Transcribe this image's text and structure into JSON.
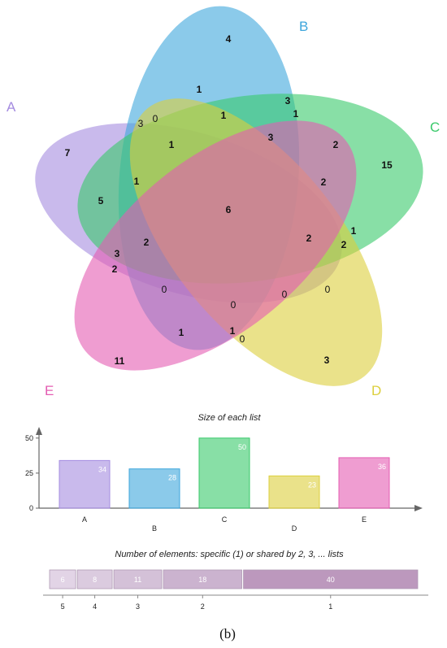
{
  "chart_data": [
    {
      "type": "venn",
      "sets": [
        {
          "name": "A",
          "color": "#a58ce0"
        },
        {
          "name": "B",
          "color": "#3ea6dc"
        },
        {
          "name": "C",
          "color": "#39c96a"
        },
        {
          "name": "D",
          "color": "#dccf3c"
        },
        {
          "name": "E",
          "color": "#e45cb2"
        }
      ],
      "regions": [
        {
          "value": "4",
          "bold": true
        },
        {
          "value": "1",
          "bold": true
        },
        {
          "value": "3",
          "bold": true
        },
        {
          "value": "1",
          "bold": true
        },
        {
          "value": "3",
          "bold": false
        },
        {
          "value": "0",
          "bold": false
        },
        {
          "value": "1",
          "bold": true
        },
        {
          "value": "3",
          "bold": true
        },
        {
          "value": "1",
          "bold": true
        },
        {
          "value": "2",
          "bold": true
        },
        {
          "value": "7",
          "bold": true
        },
        {
          "value": "15",
          "bold": true
        },
        {
          "value": "1",
          "bold": true
        },
        {
          "value": "2",
          "bold": true
        },
        {
          "value": "5",
          "bold": true
        },
        {
          "value": "6",
          "bold": true
        },
        {
          "value": "1",
          "bold": true
        },
        {
          "value": "2",
          "bold": true
        },
        {
          "value": "2",
          "bold": true
        },
        {
          "value": "2",
          "bold": true
        },
        {
          "value": "3",
          "bold": true
        },
        {
          "value": "2",
          "bold": true
        },
        {
          "value": "0",
          "bold": false
        },
        {
          "value": "0",
          "bold": false
        },
        {
          "value": "0",
          "bold": false
        },
        {
          "value": "0",
          "bold": false
        },
        {
          "value": "1",
          "bold": true
        },
        {
          "value": "1",
          "bold": true
        },
        {
          "value": "0",
          "bold": false
        },
        {
          "value": "11",
          "bold": true
        },
        {
          "value": "3",
          "bold": true
        }
      ]
    },
    {
      "type": "bar",
      "title": "Size of each list",
      "categories": [
        "A",
        "B",
        "C",
        "D",
        "E"
      ],
      "values": [
        34,
        28,
        50,
        23,
        36
      ],
      "y_ticks": [
        0,
        25,
        50
      ],
      "ylim": [
        0,
        58
      ],
      "colors": [
        "#a58ce0",
        "#3ea6dc",
        "#39c96a",
        "#dccf3c",
        "#e45cb2"
      ]
    },
    {
      "type": "bar",
      "orientation": "horizontal-stacked",
      "title": "Number of elements: specific (1) or shared by 2, 3, ... lists",
      "segments": [
        {
          "label": "5",
          "value": 6,
          "color": "#e2d4e6"
        },
        {
          "label": "4",
          "value": 8,
          "color": "#dbcbdf"
        },
        {
          "label": "3",
          "value": 11,
          "color": "#d4c1d8"
        },
        {
          "label": "2",
          "value": 18,
          "color": "#cbb3cf"
        },
        {
          "label": "1",
          "value": 40,
          "color": "#bc98bd"
        }
      ]
    }
  ],
  "caption": "(b)"
}
